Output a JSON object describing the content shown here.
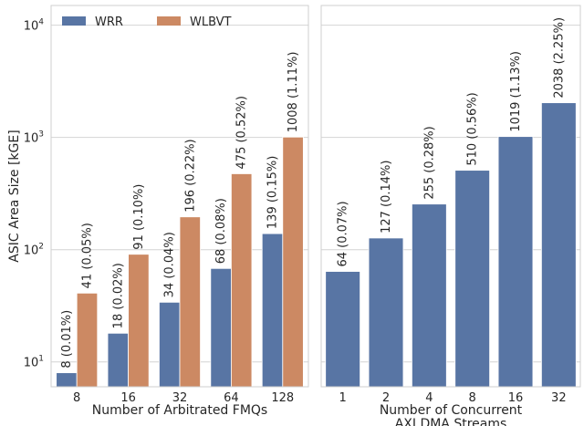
{
  "chart_data": [
    {
      "type": "bar",
      "categories": [
        "8",
        "16",
        "32",
        "64",
        "128"
      ],
      "xlabel": "Number of Arbitrated FMQs",
      "ylabel": "ASIC Area Size [kGE]",
      "yscale": "log",
      "ylim": [
        6,
        15000
      ],
      "y_ticks": [
        10,
        100,
        1000,
        10000
      ],
      "y_tick_labels": [
        [
          "10",
          "1"
        ],
        [
          "10",
          "2"
        ],
        [
          "10",
          "3"
        ],
        [
          "10",
          "4"
        ]
      ],
      "grid": true,
      "legend": "top-left",
      "series": [
        {
          "name": "WRR",
          "color": "#5875a4",
          "values": [
            8,
            18,
            34,
            68,
            139
          ],
          "labels": [
            "8 (0.01%)",
            "18 (0.02%)",
            "34 (0.04%)",
            "68 (0.08%)",
            "139 (0.15%)"
          ]
        },
        {
          "name": "WLBVT",
          "color": "#cc8963",
          "values": [
            41,
            91,
            196,
            475,
            1008
          ],
          "labels": [
            "41 (0.05%)",
            "91 (0.10%)",
            "196 (0.22%)",
            "475 (0.52%)",
            "1008 (1.11%)"
          ]
        }
      ]
    },
    {
      "type": "bar",
      "categories": [
        "1",
        "2",
        "4",
        "8",
        "16",
        "32"
      ],
      "xlabel": [
        "Number of Concurrent",
        "AXI DMA Streams"
      ],
      "yscale": "log",
      "ylim": [
        6,
        15000
      ],
      "y_ticks": [
        10,
        100,
        1000,
        10000
      ],
      "grid": true,
      "series": [
        {
          "color": "#5875a4",
          "values": [
            64,
            127,
            255,
            510,
            1019,
            2038
          ],
          "labels": [
            "64 (0.07%)",
            "127 (0.14%)",
            "255 (0.28%)",
            "510 (0.56%)",
            "1019 (1.13%)",
            "2038 (2.25%)"
          ]
        }
      ]
    }
  ]
}
